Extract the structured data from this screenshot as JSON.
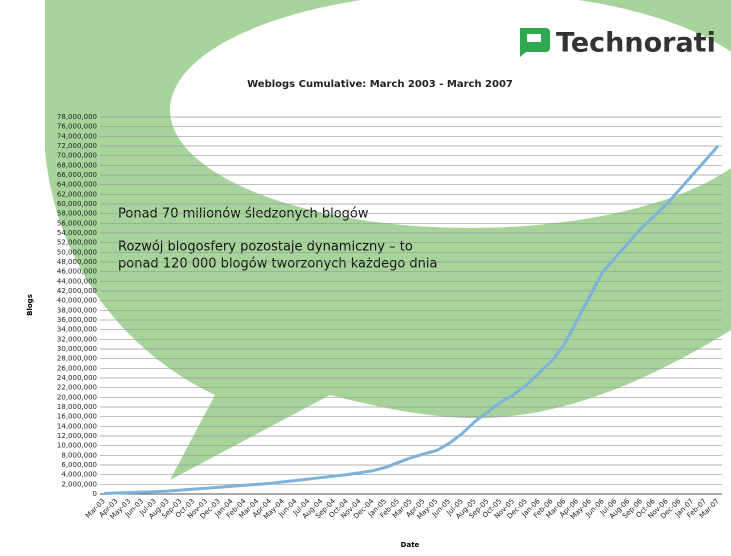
{
  "logo": "Technorati",
  "chart_data": {
    "type": "line",
    "title": "Weblogs Cumulative: March 2003 - March 2007",
    "x_label": "Date",
    "y_label": "Blogs",
    "annotations": [
      "Ponad 70 milionów śledzonych blogów",
      "Rozwój blogosfery pozostaje dynamiczny – to",
      "ponad 120 000 blogów tworzonych każdego dnia"
    ],
    "categories": [
      "Mar-03",
      "Apr-03",
      "May-03",
      "Jun-03",
      "Jul-03",
      "Aug-03",
      "Sep-03",
      "Oct-03",
      "Nov-03",
      "Dec-03",
      "Jan-04",
      "Feb-04",
      "Mar-04",
      "Apr-04",
      "May-04",
      "Jun-04",
      "Jul-04",
      "Aug-04",
      "Sep-04",
      "Oct-04",
      "Nov-04",
      "Dec-04",
      "Jan-05",
      "Feb-05",
      "Mar-05",
      "Apr-05",
      "May-05",
      "Jun-05",
      "Jul-05",
      "Aug-05",
      "Sep-05",
      "Oct-05",
      "Nov-05",
      "Dec-05",
      "Jan-06",
      "Feb-06",
      "Mar-06",
      "Apr-06",
      "May-06",
      "Jun-06",
      "Jul-06",
      "Aug-06",
      "Sep-06",
      "Oct-06",
      "Nov-06",
      "Dec-06",
      "Jan-07",
      "Feb-07",
      "Mar-07"
    ],
    "values": [
      100000,
      200000,
      300000,
      400000,
      500000,
      600000,
      800000,
      1000000,
      1200000,
      1400000,
      1600000,
      1800000,
      2000000,
      2200000,
      2500000,
      2800000,
      3100000,
      3400000,
      3700000,
      4000000,
      4400000,
      4800000,
      5500000,
      6500000,
      7500000,
      8300000,
      9000000,
      10500000,
      12500000,
      15000000,
      17000000,
      19000000,
      20500000,
      22500000,
      25000000,
      27500000,
      31000000,
      36000000,
      41000000,
      46000000,
      49000000,
      52000000,
      55000000,
      57500000,
      60000000,
      63000000,
      66000000,
      69000000,
      72000000
    ],
    "color": "#7fb2db",
    "grid": true,
    "ylim": [
      0,
      78000000
    ],
    "yticks": [
      0,
      {
        "value": 2000000,
        "label": "2,000,000"
      },
      {
        "value": 4000000,
        "label": "4,000,000"
      },
      {
        "value": 6000000,
        "label": "6,000,000"
      },
      {
        "value": 8000000,
        "label": "8,000,000"
      },
      {
        "value": 10000000,
        "label": "10,000,000"
      },
      {
        "value": 12000000,
        "label": "12,000,000"
      },
      {
        "value": 14000000,
        "label": "14,000,000"
      },
      {
        "value": 16000000,
        "label": "16,000,000"
      },
      {
        "value": 18000000,
        "label": "18,000,000"
      },
      {
        "value": 20000000,
        "label": "20,000,000"
      },
      {
        "value": 22000000,
        "label": "22,000,000"
      },
      {
        "value": 24000000,
        "label": "24,000,000"
      },
      {
        "value": 26000000,
        "label": "26,000,000"
      },
      {
        "value": 28000000,
        "label": "28,000,000"
      },
      {
        "value": 30000000,
        "label": "30,000,000"
      },
      {
        "value": 32000000,
        "label": "32,000,000"
      },
      {
        "value": 34000000,
        "label": "34,000,000"
      },
      {
        "value": 36000000,
        "label": "36,000,000"
      },
      {
        "value": 38000000,
        "label": "38,000,000"
      },
      {
        "value": 40000000,
        "label": "40,000,000"
      },
      {
        "value": 42000000,
        "label": "42,000,000"
      },
      {
        "value": 44000000,
        "label": "44,000,000"
      },
      {
        "value": 46000000,
        "label": "46,000,000"
      },
      {
        "value": 48000000,
        "label": "48,000,000"
      },
      {
        "value": 50000000,
        "label": "50,000,000"
      },
      {
        "value": 52000000,
        "label": "52,000,000"
      },
      {
        "value": 54000000,
        "label": "54,000,000"
      },
      {
        "value": 56000000,
        "label": "56,000,000"
      },
      {
        "value": 58000000,
        "label": "58,000,000"
      },
      {
        "value": 60000000,
        "label": "60,000,000"
      },
      {
        "value": 62000000,
        "label": "62,000,000"
      },
      {
        "value": 64000000,
        "label": "64,000,000"
      },
      {
        "value": 66000000,
        "label": "66,000,000"
      },
      {
        "value": 68000000,
        "label": "68,000,000"
      },
      {
        "value": 70000000,
        "label": "70,000,000"
      },
      {
        "value": 72000000,
        "label": "72,000,000"
      },
      {
        "value": 74000000,
        "label": "74,000,000"
      },
      {
        "value": 76000000,
        "label": "76,000,000"
      },
      {
        "value": 78000000,
        "label": "78,000,000"
      }
    ]
  }
}
